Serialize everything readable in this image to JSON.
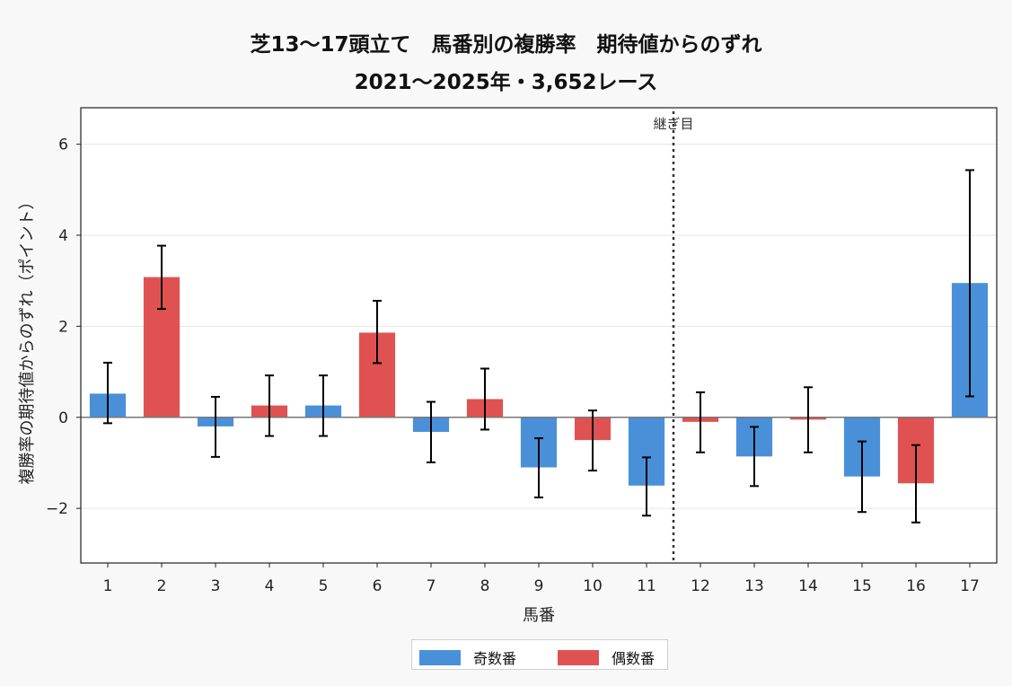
{
  "chart_data": {
    "type": "bar",
    "title": "芝13〜17頭立て　馬番別の複勝率　期待値からのずれ",
    "subtitle": "2021〜2025年・3,652レース",
    "xlabel": "馬番",
    "ylabel": "複勝率の期待値からのずれ（ポイント）",
    "ylim": [
      -3.2,
      6.8
    ],
    "yticks": [
      -2,
      0,
      2,
      4,
      6
    ],
    "ytick_labels": [
      "−2",
      "0",
      "2",
      "4",
      "6"
    ],
    "categories": [
      "1",
      "2",
      "3",
      "4",
      "5",
      "6",
      "7",
      "8",
      "9",
      "10",
      "11",
      "12",
      "13",
      "14",
      "15",
      "16",
      "17"
    ],
    "values": [
      0.52,
      3.08,
      -0.2,
      0.26,
      0.26,
      1.86,
      -0.32,
      0.4,
      -1.1,
      -0.5,
      -1.5,
      -0.1,
      -0.86,
      -0.05,
      -1.3,
      -1.45,
      2.95
    ],
    "error_low": [
      -0.13,
      2.38,
      -0.87,
      -0.41,
      -0.41,
      1.19,
      -0.99,
      -0.27,
      -1.76,
      -1.17,
      -2.16,
      -0.77,
      -1.51,
      -0.77,
      -2.08,
      -2.31,
      0.46
    ],
    "error_high": [
      1.2,
      3.77,
      0.45,
      0.92,
      0.92,
      2.56,
      0.34,
      1.07,
      -0.46,
      0.15,
      -0.88,
      0.55,
      -0.21,
      0.66,
      -0.53,
      -0.61,
      5.43
    ],
    "series": [
      {
        "name": "奇数番",
        "color": "#4a90d9"
      },
      {
        "name": "偶数番",
        "color": "#e05252"
      }
    ],
    "bar_series": [
      "奇数番",
      "偶数番",
      "奇数番",
      "偶数番",
      "奇数番",
      "偶数番",
      "奇数番",
      "偶数番",
      "奇数番",
      "偶数番",
      "奇数番",
      "偶数番",
      "奇数番",
      "偶数番",
      "奇数番",
      "偶数番",
      "奇数番"
    ],
    "vline": {
      "between": [
        "11",
        "12"
      ],
      "label": "継ぎ目"
    },
    "grid": true,
    "legend_position": "bottom-center"
  }
}
